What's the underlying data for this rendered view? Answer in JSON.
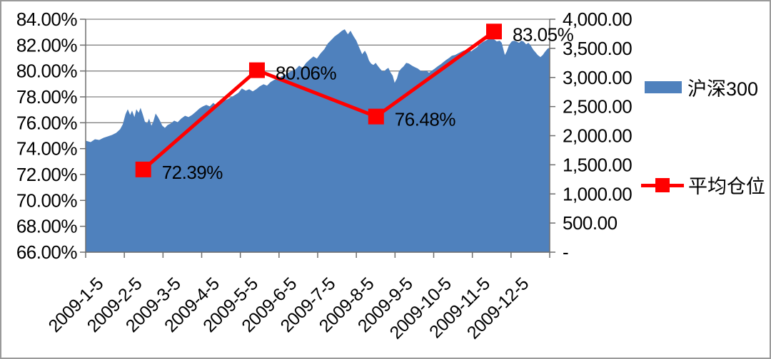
{
  "chart_data": {
    "type": "combo-area-line",
    "title": "",
    "x_axis": {
      "labels": [
        "2009-1-5",
        "2009-2-5",
        "2009-3-5",
        "2009-4-5",
        "2009-5-5",
        "2009-6-5",
        "2009-7-5",
        "2009-8-5",
        "2009-9-5",
        "2009-10-5",
        "2009-11-5",
        "2009-12-5"
      ],
      "range_months": [
        0,
        12
      ],
      "tick_count": 13
    },
    "y_left": {
      "min": 66,
      "max": 84,
      "step": 2,
      "labels": [
        "84.00%",
        "82.00%",
        "80.00%",
        "78.00%",
        "76.00%",
        "74.00%",
        "72.00%",
        "70.00%",
        "68.00%",
        "66.00%"
      ]
    },
    "y_right": {
      "min": 0,
      "max": 4000,
      "step": 500,
      "labels": [
        "4,000.00",
        "3,500.00",
        "3,000.00",
        "2,500.00",
        "2,000.00",
        "1,500.00",
        "1,000.00",
        "500.00",
        "-"
      ]
    },
    "grid": "horizontal",
    "legend_position": "right",
    "series": [
      {
        "name": "沪深300",
        "type": "area",
        "axis": "right",
        "color": "#4F81BD",
        "points": [
          [
            0.0,
            1914
          ],
          [
            0.13,
            1890
          ],
          [
            0.24,
            1939
          ],
          [
            0.35,
            1926
          ],
          [
            0.46,
            1963
          ],
          [
            0.57,
            1988
          ],
          [
            0.68,
            2012
          ],
          [
            0.79,
            2049
          ],
          [
            0.89,
            2110
          ],
          [
            0.96,
            2196
          ],
          [
            1.03,
            2368
          ],
          [
            1.09,
            2454
          ],
          [
            1.15,
            2356
          ],
          [
            1.2,
            2430
          ],
          [
            1.26,
            2319
          ],
          [
            1.31,
            2454
          ],
          [
            1.37,
            2393
          ],
          [
            1.42,
            2478
          ],
          [
            1.48,
            2356
          ],
          [
            1.53,
            2245
          ],
          [
            1.59,
            2209
          ],
          [
            1.64,
            2294
          ],
          [
            1.7,
            2172
          ],
          [
            1.75,
            2245
          ],
          [
            1.81,
            2380
          ],
          [
            1.87,
            2319
          ],
          [
            1.92,
            2258
          ],
          [
            1.98,
            2172
          ],
          [
            2.05,
            2135
          ],
          [
            2.12,
            2184
          ],
          [
            2.2,
            2209
          ],
          [
            2.29,
            2258
          ],
          [
            2.38,
            2233
          ],
          [
            2.47,
            2294
          ],
          [
            2.57,
            2343
          ],
          [
            2.66,
            2319
          ],
          [
            2.75,
            2356
          ],
          [
            2.84,
            2405
          ],
          [
            2.94,
            2466
          ],
          [
            3.03,
            2503
          ],
          [
            3.12,
            2528
          ],
          [
            3.21,
            2503
          ],
          [
            3.3,
            2564
          ],
          [
            3.4,
            2503
          ],
          [
            3.49,
            2552
          ],
          [
            3.58,
            2601
          ],
          [
            3.67,
            2626
          ],
          [
            3.77,
            2663
          ],
          [
            3.86,
            2699
          ],
          [
            3.95,
            2736
          ],
          [
            4.04,
            2810
          ],
          [
            4.14,
            2773
          ],
          [
            4.23,
            2798
          ],
          [
            4.32,
            2761
          ],
          [
            4.41,
            2798
          ],
          [
            4.5,
            2847
          ],
          [
            4.6,
            2883
          ],
          [
            4.69,
            2859
          ],
          [
            4.78,
            2920
          ],
          [
            4.87,
            2957
          ],
          [
            4.97,
            2981
          ],
          [
            5.06,
            3018
          ],
          [
            5.15,
            3043
          ],
          [
            5.24,
            3080
          ],
          [
            5.34,
            3117
          ],
          [
            5.43,
            3141
          ],
          [
            5.52,
            3202
          ],
          [
            5.61,
            3165
          ],
          [
            5.7,
            3251
          ],
          [
            5.8,
            3313
          ],
          [
            5.89,
            3362
          ],
          [
            5.98,
            3325
          ],
          [
            6.07,
            3411
          ],
          [
            6.17,
            3484
          ],
          [
            6.26,
            3583
          ],
          [
            6.35,
            3644
          ],
          [
            6.44,
            3705
          ],
          [
            6.54,
            3754
          ],
          [
            6.63,
            3803
          ],
          [
            6.7,
            3828
          ],
          [
            6.78,
            3742
          ],
          [
            6.85,
            3803
          ],
          [
            6.92,
            3718
          ],
          [
            7.0,
            3632
          ],
          [
            7.07,
            3521
          ],
          [
            7.15,
            3399
          ],
          [
            7.22,
            3460
          ],
          [
            7.27,
            3399
          ],
          [
            7.33,
            3288
          ],
          [
            7.38,
            3239
          ],
          [
            7.44,
            3215
          ],
          [
            7.5,
            3251
          ],
          [
            7.55,
            3202
          ],
          [
            7.61,
            3153
          ],
          [
            7.66,
            3117
          ],
          [
            7.72,
            3104
          ],
          [
            7.77,
            3141
          ],
          [
            7.83,
            3165
          ],
          [
            7.88,
            3092
          ],
          [
            7.94,
            3031
          ],
          [
            7.99,
            2908
          ],
          [
            8.05,
            2982
          ],
          [
            8.1,
            3104
          ],
          [
            8.16,
            3153
          ],
          [
            8.22,
            3190
          ],
          [
            8.29,
            3251
          ],
          [
            8.36,
            3239
          ],
          [
            8.44,
            3202
          ],
          [
            8.51,
            3178
          ],
          [
            8.59,
            3153
          ],
          [
            8.66,
            3117
          ],
          [
            8.73,
            3104
          ],
          [
            8.81,
            3117
          ],
          [
            8.88,
            3080
          ],
          [
            8.95,
            3117
          ],
          [
            9.03,
            3153
          ],
          [
            9.1,
            3190
          ],
          [
            9.18,
            3227
          ],
          [
            9.25,
            3264
          ],
          [
            9.32,
            3300
          ],
          [
            9.4,
            3337
          ],
          [
            9.47,
            3374
          ],
          [
            9.55,
            3386
          ],
          [
            9.62,
            3411
          ],
          [
            9.69,
            3435
          ],
          [
            9.77,
            3460
          ],
          [
            9.84,
            3472
          ],
          [
            9.91,
            3484
          ],
          [
            9.97,
            3448
          ],
          [
            10.04,
            3484
          ],
          [
            10.12,
            3521
          ],
          [
            10.19,
            3570
          ],
          [
            10.27,
            3607
          ],
          [
            10.34,
            3632
          ],
          [
            10.41,
            3656
          ],
          [
            10.49,
            3668
          ],
          [
            10.56,
            3656
          ],
          [
            10.63,
            3620
          ],
          [
            10.71,
            3632
          ],
          [
            10.76,
            3595
          ],
          [
            10.84,
            3386
          ],
          [
            10.89,
            3448
          ],
          [
            10.95,
            3558
          ],
          [
            11.02,
            3620
          ],
          [
            11.08,
            3632
          ],
          [
            11.13,
            3620
          ],
          [
            11.21,
            3595
          ],
          [
            11.26,
            3632
          ],
          [
            11.32,
            3620
          ],
          [
            11.39,
            3570
          ],
          [
            11.45,
            3595
          ],
          [
            11.5,
            3558
          ],
          [
            11.58,
            3472
          ],
          [
            11.63,
            3435
          ],
          [
            11.69,
            3386
          ],
          [
            11.76,
            3350
          ],
          [
            11.82,
            3386
          ],
          [
            11.87,
            3435
          ],
          [
            11.95,
            3497
          ],
          [
            12.0,
            3509
          ]
        ]
      },
      {
        "name": "平均仓位",
        "type": "line",
        "axis": "left",
        "color": "#FF0000",
        "marker": "square",
        "points": [
          [
            1.49,
            72.39
          ],
          [
            4.43,
            80.06
          ],
          [
            7.51,
            76.48
          ],
          [
            10.56,
            83.05
          ]
        ],
        "data_labels": [
          "72.39%",
          "80.06%",
          "76.48%",
          "83.05%"
        ]
      }
    ],
    "legend_items": [
      {
        "label": "沪深300",
        "swatch": "area-square",
        "color": "#4F81BD"
      },
      {
        "label": "平均仓位",
        "swatch": "line-with-marker",
        "color": "#FF0000"
      }
    ],
    "colors": {
      "area_fill": "#4F81BD",
      "line": "#FF0000",
      "gridline": "#848484",
      "axis_line": "#6e6e6e",
      "text": "#000000",
      "frame_border": "#9a9a9a"
    }
  }
}
